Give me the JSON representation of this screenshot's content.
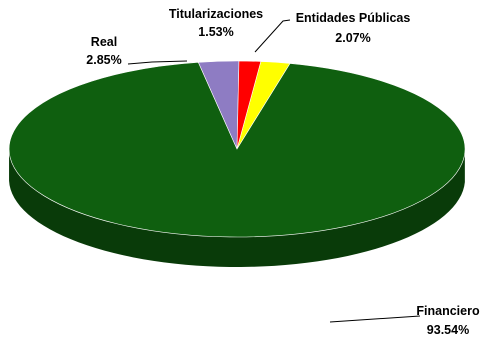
{
  "chart_data": {
    "type": "pie",
    "style": "3d",
    "categories": [
      "Entidades Públicas",
      "Financiero",
      "Real",
      "Titularizaciones"
    ],
    "values": [
      2.07,
      93.54,
      2.85,
      1.53
    ],
    "value_labels": [
      "2.07%",
      "93.54%",
      "2.85%",
      "1.53%"
    ],
    "colors": [
      "#ffff00",
      "#0f5f0f",
      "#8e7cc3",
      "#ff0000"
    ],
    "legend": "none"
  }
}
